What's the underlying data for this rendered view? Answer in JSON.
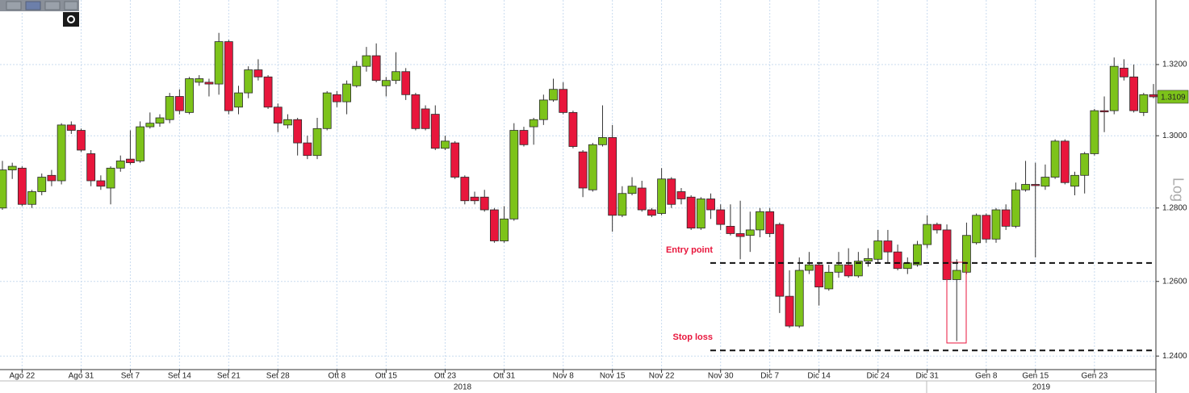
{
  "chart_data": {
    "type": "candlestick",
    "log_scale": true,
    "scale_label": "Log",
    "grid": true,
    "up_color": "#7dc31a",
    "down_color": "#e8163c",
    "ylim": [
      1.2364,
      1.3384
    ],
    "yticks": [
      {
        "value": 1.24,
        "label": "1.2400"
      },
      {
        "value": 1.26,
        "label": "1.2600"
      },
      {
        "value": 1.28,
        "label": "1.2800"
      },
      {
        "value": 1.3,
        "label": "1.3000"
      },
      {
        "value": 1.32,
        "label": "1.3200"
      }
    ],
    "xticks": [
      {
        "value": 2,
        "label": "Ago 22"
      },
      {
        "value": 8,
        "label": "Ago 31"
      },
      {
        "value": 13,
        "label": "Set 7"
      },
      {
        "value": 18,
        "label": "Set 14"
      },
      {
        "value": 23,
        "label": "Set 21"
      },
      {
        "value": 28,
        "label": "Set 28"
      },
      {
        "value": 34,
        "label": "Ott 8"
      },
      {
        "value": 39,
        "label": "Ott 15"
      },
      {
        "value": 45,
        "label": "Ott 23"
      },
      {
        "value": 51,
        "label": "Ott 31"
      },
      {
        "value": 57,
        "label": "Nov 8"
      },
      {
        "value": 62,
        "label": "Nov 15"
      },
      {
        "value": 67,
        "label": "Nov 22"
      },
      {
        "value": 73,
        "label": "Nov 30"
      },
      {
        "value": 78,
        "label": "Dic 7"
      },
      {
        "value": 83,
        "label": "Dic 14"
      },
      {
        "value": 89,
        "label": "Dic 24"
      },
      {
        "value": 94,
        "label": "Dic 31"
      },
      {
        "value": 100,
        "label": "Gen 8"
      },
      {
        "value": 105,
        "label": "Gen 15"
      },
      {
        "value": 111,
        "label": "Gen 23"
      }
    ],
    "years": [
      "2018",
      "2019"
    ],
    "last_price": 1.3109,
    "levels": [
      {
        "label": "Entry point",
        "value": 1.265
      },
      {
        "label": "Stop loss",
        "value": 1.2415
      }
    ],
    "open": [
      1.28,
      1.2905,
      1.291,
      1.281,
      1.2845,
      1.289,
      1.2875,
      1.303,
      1.3015,
      1.295,
      1.2875,
      1.2855,
      1.291,
      1.2935,
      1.293,
      1.3025,
      1.3035,
      1.3045,
      1.311,
      1.3065,
      1.315,
      1.315,
      1.3145,
      1.3265,
      1.308,
      1.312,
      1.3185,
      1.3165,
      1.308,
      1.303,
      1.3045,
      1.298,
      1.2945,
      1.302,
      1.3115,
      1.3095,
      1.314,
      1.3195,
      1.3225,
      1.314,
      1.3155,
      1.318,
      1.3115,
      1.3075,
      1.306,
      1.2965,
      1.298,
      1.2885,
      1.283,
      1.283,
      1.2795,
      1.271,
      1.277,
      1.3015,
      1.3025,
      1.3045,
      1.31,
      1.313,
      1.3065,
      1.2955,
      1.285,
      1.2975,
      1.2995,
      1.278,
      1.284,
      1.2855,
      1.2795,
      1.2785,
      1.288,
      1.2845,
      1.283,
      1.2745,
      1.2825,
      1.2795,
      1.275,
      1.273,
      1.2725,
      1.274,
      1.279,
      1.2755,
      1.256,
      1.248,
      1.263,
      1.2645,
      1.258,
      1.2625,
      1.2645,
      1.2615,
      1.2655,
      1.266,
      1.271,
      1.268,
      1.2635,
      1.2645,
      1.27,
      1.2755,
      1.274,
      1.2605,
      1.2625,
      1.2705,
      1.278,
      1.2715,
      1.2795,
      1.275,
      1.285,
      1.2865,
      1.286,
      1.2885,
      1.2985,
      1.286,
      1.289,
      1.295,
      1.307,
      1.307,
      1.319,
      1.3165,
      1.3065,
      1.3115
    ],
    "high": [
      1.293,
      1.2925,
      1.2915,
      1.285,
      1.2895,
      1.2905,
      1.3035,
      1.304,
      1.302,
      1.296,
      1.289,
      1.2915,
      1.2945,
      1.3015,
      1.304,
      1.3065,
      1.306,
      1.312,
      1.313,
      1.3165,
      1.317,
      1.316,
      1.329,
      1.327,
      1.314,
      1.3195,
      1.3215,
      1.317,
      1.309,
      1.306,
      1.305,
      1.3,
      1.305,
      1.3125,
      1.3125,
      1.3155,
      1.321,
      1.325,
      1.326,
      1.3165,
      1.3235,
      1.319,
      1.312,
      1.3085,
      1.3085,
      1.3,
      1.2985,
      1.289,
      1.2845,
      1.285,
      1.28,
      1.2805,
      1.3035,
      1.3025,
      1.305,
      1.3115,
      1.316,
      1.315,
      1.307,
      1.296,
      1.298,
      1.3085,
      1.303,
      1.286,
      1.2885,
      1.2875,
      1.28,
      1.291,
      1.2885,
      1.2855,
      1.2835,
      1.283,
      1.284,
      1.281,
      1.281,
      1.282,
      1.279,
      1.28,
      1.28,
      1.276,
      1.263,
      1.2665,
      1.268,
      1.265,
      1.2645,
      1.268,
      1.269,
      1.268,
      1.269,
      1.274,
      1.274,
      1.27,
      1.2665,
      1.271,
      1.278,
      1.276,
      1.2755,
      1.266,
      1.276,
      1.2785,
      1.2785,
      1.28,
      1.281,
      1.287,
      1.293,
      1.2925,
      1.292,
      1.299,
      1.299,
      1.29,
      1.2955,
      1.3075,
      1.311,
      1.322,
      1.3215,
      1.32,
      1.312,
      1.3145
    ],
    "low": [
      1.2795,
      1.288,
      1.2805,
      1.28,
      1.2835,
      1.286,
      1.2865,
      1.3005,
      1.2955,
      1.286,
      1.285,
      1.281,
      1.29,
      1.292,
      1.2925,
      1.302,
      1.3025,
      1.3035,
      1.306,
      1.306,
      1.314,
      1.311,
      1.3115,
      1.306,
      1.306,
      1.3105,
      1.3155,
      1.3075,
      1.301,
      1.302,
      1.2945,
      1.2935,
      1.2935,
      1.3015,
      1.308,
      1.306,
      1.3135,
      1.318,
      1.315,
      1.311,
      1.3145,
      1.31,
      1.3015,
      1.3015,
      1.296,
      1.296,
      1.288,
      1.281,
      1.281,
      1.279,
      1.2705,
      1.2705,
      1.2765,
      1.297,
      1.2975,
      1.303,
      1.3095,
      1.306,
      1.2965,
      1.283,
      1.2845,
      1.297,
      1.2735,
      1.2775,
      1.2835,
      1.279,
      1.2775,
      1.278,
      1.28,
      1.281,
      1.274,
      1.274,
      1.277,
      1.274,
      1.2725,
      1.266,
      1.268,
      1.272,
      1.272,
      1.2515,
      1.2475,
      1.2475,
      1.262,
      1.2535,
      1.2575,
      1.261,
      1.261,
      1.261,
      1.264,
      1.265,
      1.265,
      1.263,
      1.262,
      1.264,
      1.269,
      1.273,
      1.26,
      1.244,
      1.262,
      1.27,
      1.2705,
      1.2705,
      1.274,
      1.2745,
      1.2845,
      1.2665,
      1.285,
      1.288,
      1.2865,
      1.2835,
      1.284,
      1.2945,
      1.301,
      1.306,
      1.3155,
      1.3065,
      1.3055,
      1.3105
    ],
    "close": [
      1.2905,
      1.2915,
      1.281,
      1.2845,
      1.2885,
      1.2875,
      1.303,
      1.3015,
      1.296,
      1.2875,
      1.286,
      1.291,
      1.293,
      1.2925,
      1.3025,
      1.3035,
      1.305,
      1.311,
      1.307,
      1.316,
      1.316,
      1.3145,
      1.3265,
      1.307,
      1.312,
      1.3185,
      1.3165,
      1.308,
      1.3035,
      1.3045,
      1.298,
      1.2945,
      1.302,
      1.312,
      1.3095,
      1.3145,
      1.3195,
      1.3225,
      1.3155,
      1.3155,
      1.318,
      1.3115,
      1.302,
      1.302,
      1.2965,
      1.2985,
      1.2885,
      1.282,
      1.282,
      1.2795,
      1.271,
      1.277,
      1.3015,
      1.2975,
      1.3045,
      1.31,
      1.313,
      1.3065,
      1.297,
      1.2855,
      1.2975,
      1.2995,
      1.278,
      1.284,
      1.286,
      1.2795,
      1.278,
      1.288,
      1.281,
      1.2825,
      1.2745,
      1.2825,
      1.2795,
      1.2755,
      1.273,
      1.2722,
      1.274,
      1.279,
      1.273,
      1.256,
      1.248,
      1.263,
      1.2645,
      1.2585,
      1.2625,
      1.2645,
      1.2615,
      1.2655,
      1.2662,
      1.271,
      1.268,
      1.2635,
      1.265,
      1.27,
      1.2755,
      1.274,
      1.2605,
      1.263,
      1.2725,
      1.278,
      1.2715,
      1.2795,
      1.275,
      1.285,
      1.2865,
      1.2862,
      1.2885,
      1.2985,
      1.287,
      1.289,
      1.295,
      1.307,
      1.3067,
      1.3195,
      1.3165,
      1.307,
      1.3115,
      1.3109
    ]
  }
}
